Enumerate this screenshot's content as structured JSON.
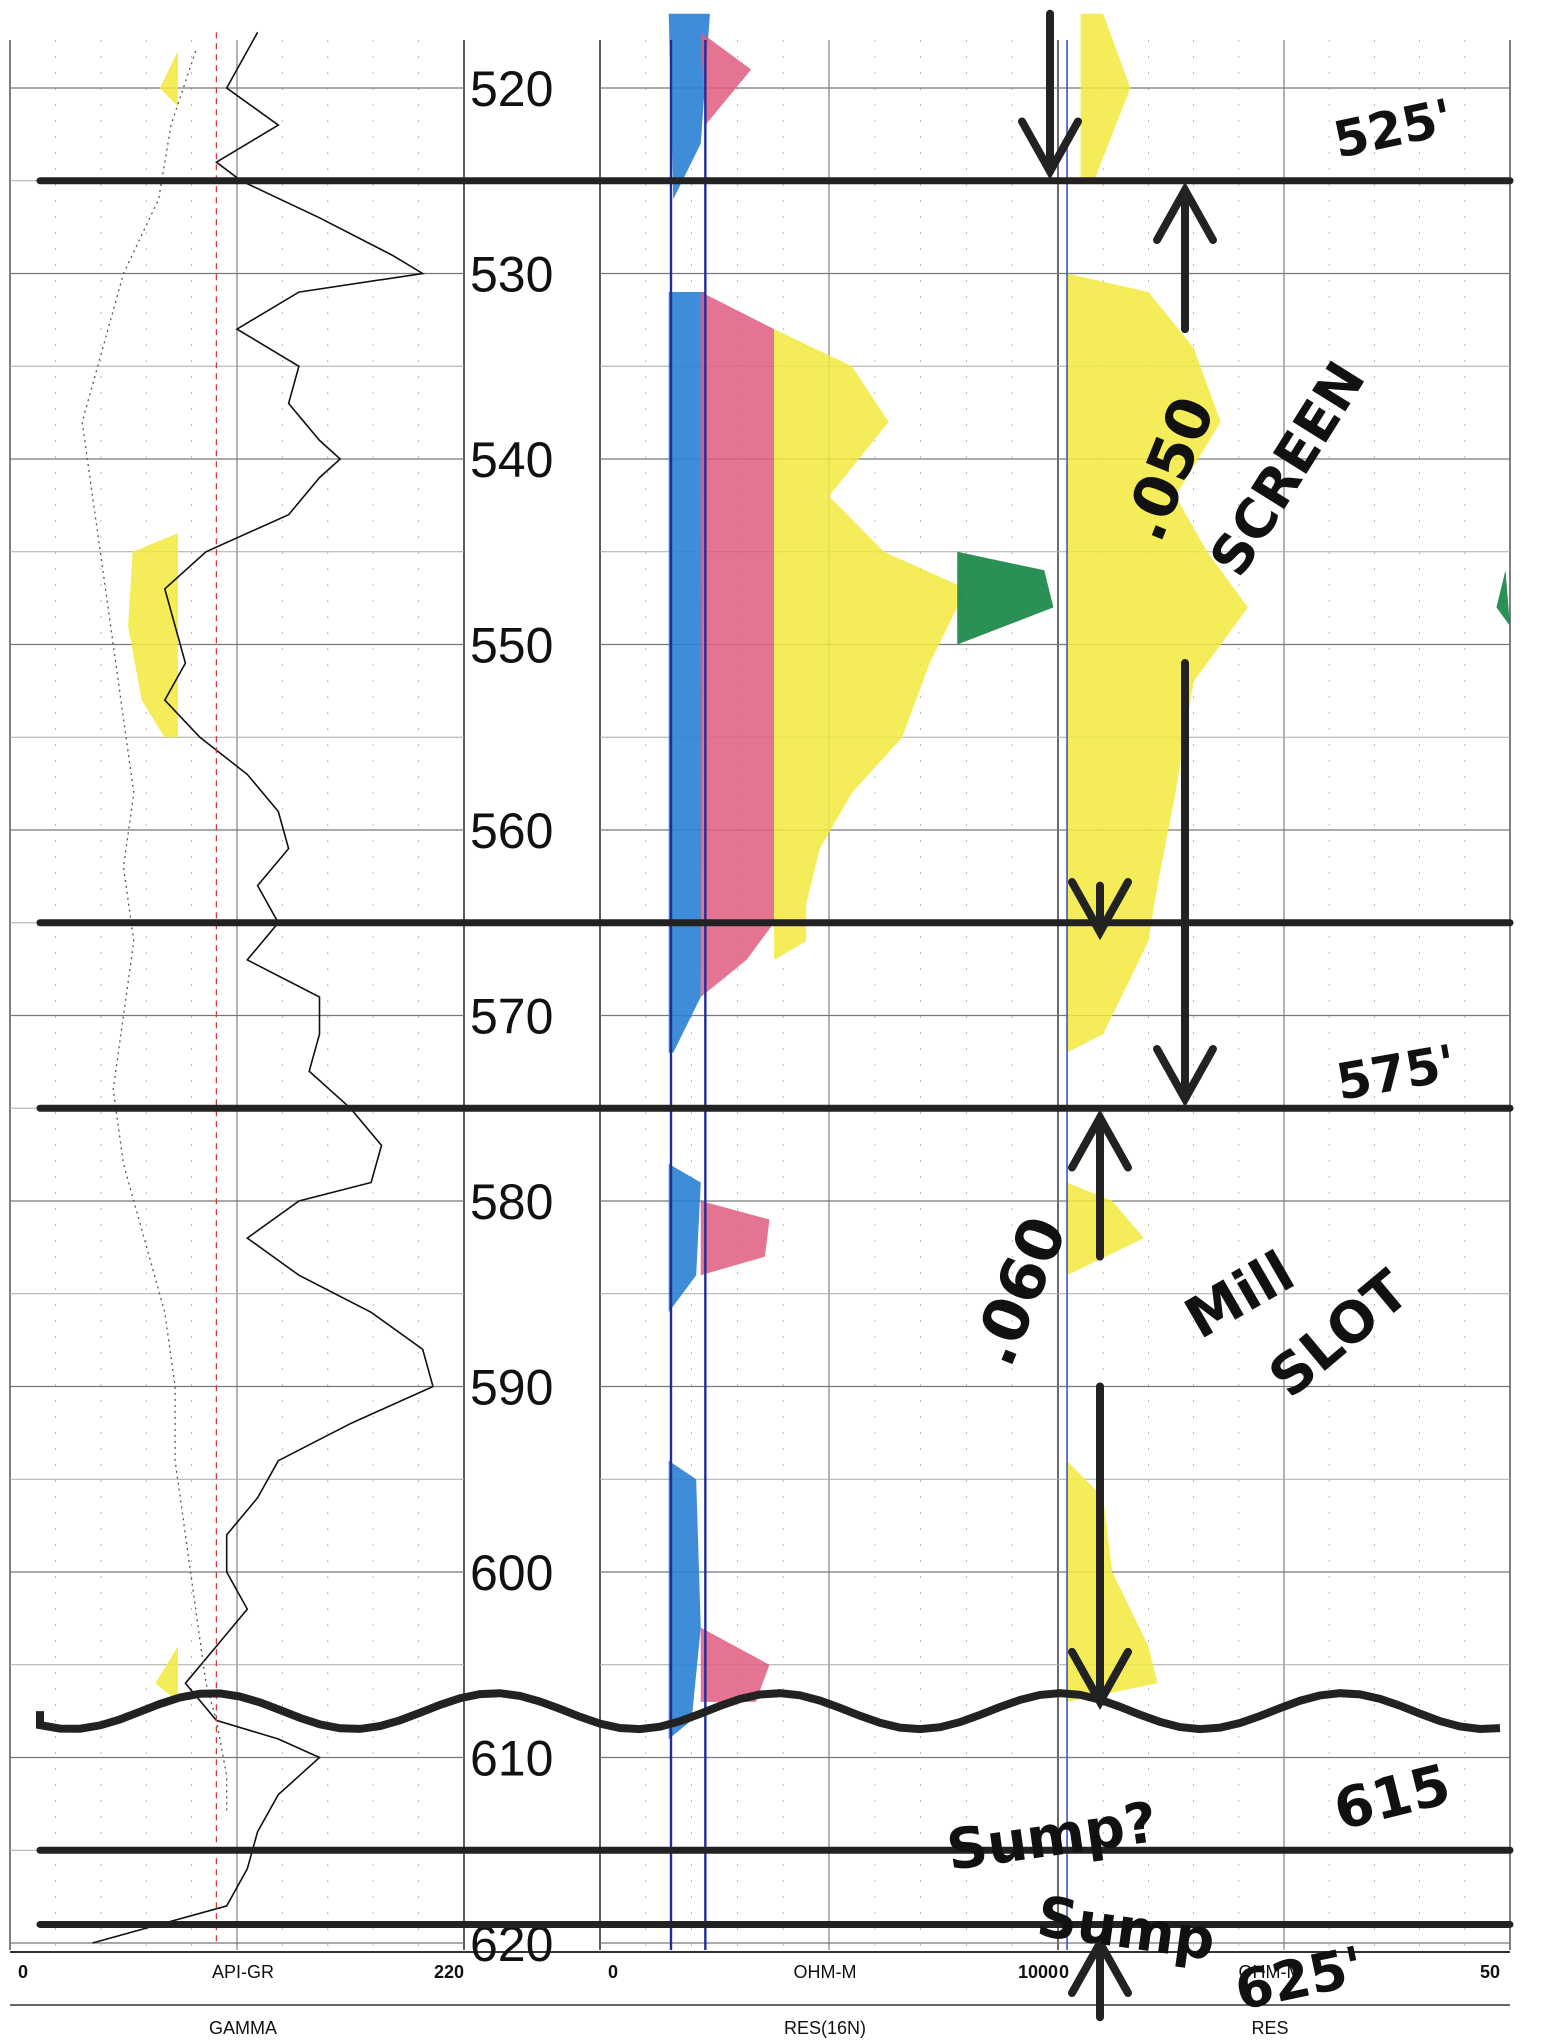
{
  "chart_data": {
    "type": "line",
    "depth_range": [
      516,
      621
    ],
    "depth_ticks": [
      520,
      530,
      540,
      550,
      560,
      570,
      580,
      590,
      600,
      610,
      620
    ],
    "tracks": [
      {
        "name": "GAMMA",
        "unit": "API-GR",
        "scale_min": "0",
        "scale_max": "220",
        "range": [
          0,
          220
        ],
        "series": [
          {
            "style": "solid",
            "points": [
              [
                517,
                120
              ],
              [
                520,
                105
              ],
              [
                522,
                130
              ],
              [
                524,
                100
              ],
              [
                525,
                112
              ],
              [
                527,
                150
              ],
              [
                529,
                185
              ],
              [
                530,
                200
              ],
              [
                531,
                140
              ],
              [
                533,
                110
              ],
              [
                535,
                140
              ],
              [
                537,
                135
              ],
              [
                539,
                150
              ],
              [
                540,
                160
              ],
              [
                541,
                150
              ],
              [
                543,
                135
              ],
              [
                545,
                95
              ],
              [
                547,
                75
              ],
              [
                549,
                80
              ],
              [
                551,
                85
              ],
              [
                553,
                75
              ],
              [
                555,
                92
              ],
              [
                557,
                115
              ],
              [
                559,
                130
              ],
              [
                561,
                135
              ],
              [
                563,
                120
              ],
              [
                565,
                130
              ],
              [
                567,
                115
              ],
              [
                569,
                150
              ],
              [
                571,
                150
              ],
              [
                573,
                145
              ],
              [
                575,
                165
              ],
              [
                577,
                180
              ],
              [
                579,
                175
              ],
              [
                580,
                140
              ],
              [
                582,
                115
              ],
              [
                584,
                140
              ],
              [
                586,
                175
              ],
              [
                588,
                200
              ],
              [
                590,
                205
              ],
              [
                592,
                165
              ],
              [
                594,
                130
              ],
              [
                596,
                120
              ],
              [
                598,
                105
              ],
              [
                600,
                105
              ],
              [
                602,
                115
              ],
              [
                604,
                100
              ],
              [
                606,
                85
              ],
              [
                608,
                100
              ],
              [
                609,
                130
              ],
              [
                610,
                150
              ],
              [
                612,
                130
              ],
              [
                614,
                120
              ],
              [
                616,
                115
              ],
              [
                618,
                105
              ],
              [
                620,
                40
              ]
            ]
          },
          {
            "style": "dotted",
            "points": [
              [
                518,
                90
              ],
              [
                522,
                78
              ],
              [
                526,
                72
              ],
              [
                530,
                55
              ],
              [
                534,
                45
              ],
              [
                538,
                35
              ],
              [
                542,
                40
              ],
              [
                546,
                45
              ],
              [
                550,
                50
              ],
              [
                554,
                55
              ],
              [
                558,
                60
              ],
              [
                562,
                55
              ],
              [
                566,
                60
              ],
              [
                570,
                55
              ],
              [
                574,
                50
              ],
              [
                578,
                55
              ],
              [
                582,
                65
              ],
              [
                586,
                75
              ],
              [
                590,
                80
              ],
              [
                594,
                80
              ],
              [
                598,
                85
              ],
              [
                602,
                90
              ],
              [
                606,
                95
              ],
              [
                608,
                100
              ],
              [
                611,
                105
              ],
              [
                613,
                105
              ]
            ]
          },
          {
            "style": "dashed-red",
            "points": [
              [
                517,
                100
              ],
              [
                620,
                100
              ]
            ]
          }
        ]
      },
      {
        "name": "RES(16N)",
        "unit": "OHM-M",
        "scale_min": "0",
        "scale_max": "1000",
        "range": [
          0,
          1000
        ]
      },
      {
        "name": "RES",
        "unit": "OHM-M",
        "scale_min": "0",
        "scale_max": "50",
        "range": [
          0,
          50
        ]
      }
    ],
    "annotations": [
      "525'",
      ".050",
      "SCREEN",
      "575'",
      ".060",
      "Mill",
      "SLOT",
      "615",
      "Sump?",
      "Sump",
      "625'"
    ]
  },
  "colors": {
    "yellow": "#f2ea3c",
    "pink": "#e05c80",
    "blue": "#2a7fd4",
    "green": "#1f8a4c",
    "ink": "#222222"
  }
}
